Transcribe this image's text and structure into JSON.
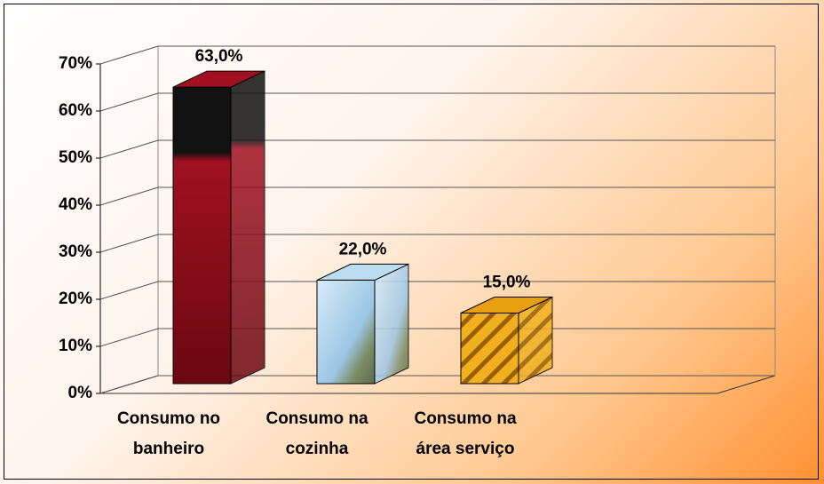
{
  "chart_data": {
    "type": "bar3d",
    "categories": [
      "Consumo no banheiro",
      "Consumo na cozinha",
      "Consumo na área serviço"
    ],
    "values": [
      63,
      22,
      15
    ],
    "value_labels": [
      "63,0%",
      "22,0%",
      "15,0%"
    ],
    "colors": [
      "#a01020",
      "#bcdcf0",
      "#e8a010"
    ],
    "ylim": [
      0,
      70
    ],
    "yticks": [
      {
        "value": 0,
        "label": "0%"
      },
      {
        "value": 10,
        "label": "10%"
      },
      {
        "value": 20,
        "label": "20%"
      },
      {
        "value": 30,
        "label": "30%"
      },
      {
        "value": 40,
        "label": "40%"
      },
      {
        "value": 50,
        "label": "50%"
      },
      {
        "value": 60,
        "label": "60%"
      },
      {
        "value": 70,
        "label": "70%"
      }
    ],
    "grid": true
  }
}
